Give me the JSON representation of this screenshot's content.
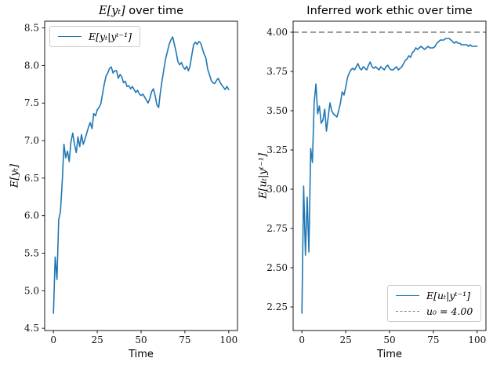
{
  "figure": {
    "background": "#ffffff",
    "accent_color": "#1f77b4",
    "reference_color": "#7f7f7f"
  },
  "chart_data": [
    {
      "type": "line",
      "title_math": "E[yₜ]",
      "title_rest": " over time",
      "xlabel": "Time",
      "ylabel": "E[yₜ]",
      "xlim": [
        -5,
        105
      ],
      "ylim": [
        4.47,
        8.59
      ],
      "xticks": [
        0,
        25,
        50,
        75,
        100
      ],
      "yticks": [
        "4.5",
        "5.0",
        "5.5",
        "6.0",
        "6.5",
        "7.0",
        "7.5",
        "8.0",
        "8.5"
      ],
      "grid": false,
      "legend": {
        "position": "upper-left",
        "entries": [
          {
            "label": "E[yₜ|yᵗ⁻¹]",
            "style": "solid",
            "color": "#1f77b4"
          }
        ]
      },
      "series": [
        {
          "name": "E[yₜ|yᵗ⁻¹]",
          "color": "#1f77b4",
          "x_start": 0,
          "x_step": 1,
          "values": [
            4.7,
            5.45,
            5.15,
            5.95,
            6.05,
            6.45,
            6.95,
            6.77,
            6.86,
            6.72,
            6.98,
            7.1,
            6.95,
            6.84,
            7.05,
            6.92,
            7.08,
            6.95,
            7.02,
            7.1,
            7.18,
            7.24,
            7.16,
            7.36,
            7.33,
            7.41,
            7.44,
            7.49,
            7.62,
            7.75,
            7.86,
            7.9,
            7.96,
            7.98,
            7.9,
            7.93,
            7.93,
            7.83,
            7.88,
            7.85,
            7.77,
            7.79,
            7.72,
            7.73,
            7.69,
            7.72,
            7.68,
            7.64,
            7.67,
            7.62,
            7.6,
            7.62,
            7.58,
            7.54,
            7.5,
            7.56,
            7.65,
            7.69,
            7.6,
            7.48,
            7.44,
            7.64,
            7.8,
            7.95,
            8.09,
            8.18,
            8.28,
            8.34,
            8.38,
            8.28,
            8.18,
            8.05,
            8.01,
            8.04,
            7.98,
            7.95,
            7.99,
            7.93,
            8.0,
            8.15,
            8.28,
            8.31,
            8.28,
            8.32,
            8.3,
            8.22,
            8.15,
            8.1,
            7.95,
            7.88,
            7.8,
            7.77,
            7.76,
            7.8,
            7.83,
            7.78,
            7.74,
            7.71,
            7.68,
            7.72,
            7.68
          ]
        }
      ]
    },
    {
      "type": "line",
      "title_math": "",
      "title_rest": "Inferred work ethic over time",
      "xlabel": "Time",
      "ylabel": "E[uₜ|yᵗ⁻¹]",
      "xlim": [
        -5,
        105
      ],
      "ylim": [
        2.1,
        4.07
      ],
      "xticks": [
        0,
        25,
        50,
        75,
        100
      ],
      "yticks": [
        "2.25",
        "2.50",
        "2.75",
        "3.00",
        "3.25",
        "3.50",
        "3.75",
        "4.00"
      ],
      "grid": false,
      "hline": {
        "value": 4.0,
        "color": "#7f7f7f",
        "style": "dashed"
      },
      "legend": {
        "position": "lower-right",
        "entries": [
          {
            "label": "E[uₜ|yᵗ⁻¹]",
            "style": "solid",
            "color": "#1f77b4"
          },
          {
            "label": "u₀ = 4.00",
            "style": "dashed",
            "color": "#7f7f7f"
          }
        ]
      },
      "series": [
        {
          "name": "E[uₜ|yᵗ⁻¹]",
          "color": "#1f77b4",
          "x_start": 0,
          "x_step": 1,
          "values": [
            2.21,
            3.02,
            2.58,
            2.95,
            2.6,
            3.26,
            3.17,
            3.55,
            3.67,
            3.48,
            3.53,
            3.42,
            3.44,
            3.51,
            3.37,
            3.46,
            3.55,
            3.5,
            3.48,
            3.47,
            3.46,
            3.5,
            3.55,
            3.62,
            3.6,
            3.65,
            3.71,
            3.74,
            3.76,
            3.77,
            3.76,
            3.78,
            3.8,
            3.77,
            3.76,
            3.78,
            3.77,
            3.76,
            3.79,
            3.81,
            3.78,
            3.77,
            3.78,
            3.77,
            3.76,
            3.78,
            3.77,
            3.76,
            3.78,
            3.79,
            3.77,
            3.76,
            3.76,
            3.77,
            3.78,
            3.76,
            3.77,
            3.78,
            3.8,
            3.82,
            3.83,
            3.85,
            3.84,
            3.87,
            3.88,
            3.9,
            3.89,
            3.9,
            3.91,
            3.9,
            3.89,
            3.9,
            3.91,
            3.9,
            3.9,
            3.9,
            3.91,
            3.93,
            3.94,
            3.95,
            3.95,
            3.95,
            3.96,
            3.96,
            3.96,
            3.95,
            3.94,
            3.93,
            3.94,
            3.93,
            3.93,
            3.92,
            3.92,
            3.92,
            3.92,
            3.91,
            3.92,
            3.91,
            3.91,
            3.91,
            3.91
          ]
        }
      ]
    }
  ]
}
